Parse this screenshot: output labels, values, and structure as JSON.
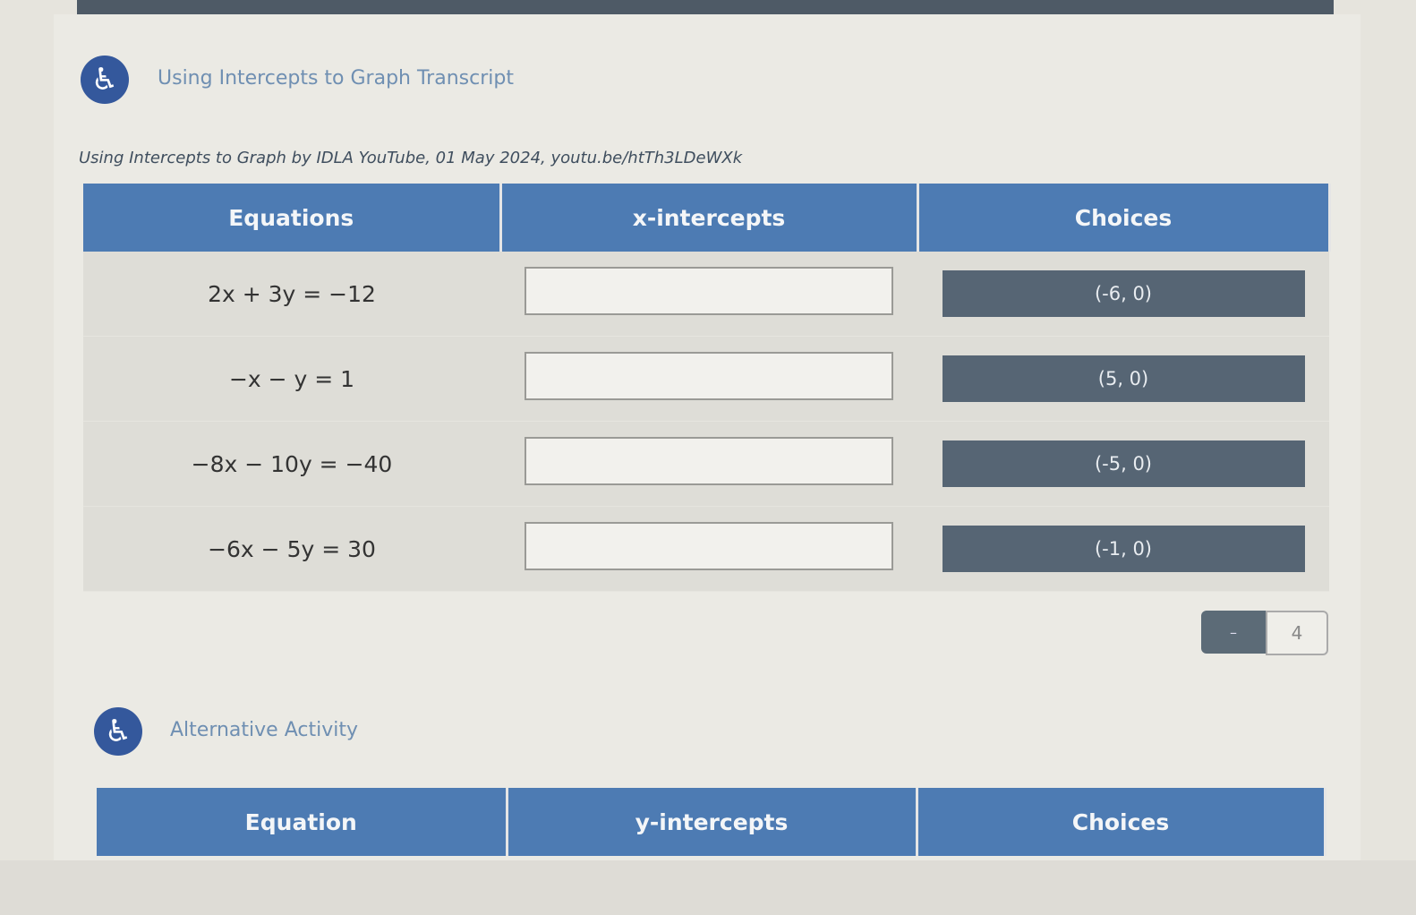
{
  "transcript_link": "Using Intercepts to Graph Transcript",
  "citation": "Using Intercepts to Graph by IDLA YouTube, 01 May 2024, youtu.be/htTh3LDeWXk",
  "table1": {
    "headers": [
      "Equations",
      "x-intercepts",
      "Choices"
    ],
    "rows": [
      {
        "equation": "2x + 3y = −12",
        "choice": "(-6, 0)"
      },
      {
        "equation": "−x − y = 1",
        "choice": "(5, 0)"
      },
      {
        "equation": "−8x − 10y = −40",
        "choice": "(-5, 0)"
      },
      {
        "equation": "−6x − 5y = 30",
        "choice": "(-1, 0)"
      }
    ]
  },
  "score": {
    "current": "–",
    "total": "4"
  },
  "alternative_link": "Alternative Activity",
  "table2": {
    "headers": [
      "Equation",
      "y-intercepts",
      "Choices"
    ]
  },
  "colors": {
    "header": "#4d7bb3",
    "choice": "#566574",
    "a11y": "#34589c"
  }
}
